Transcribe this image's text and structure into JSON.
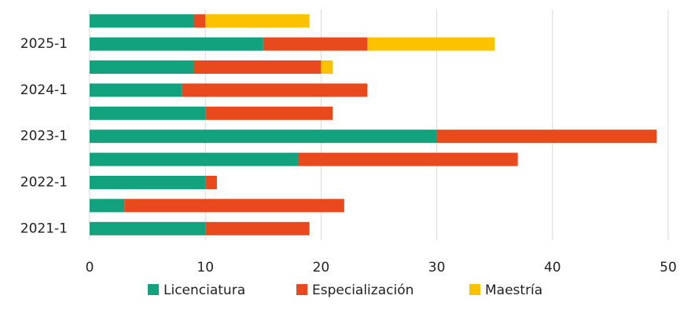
{
  "chart_data": {
    "type": "stacked-barh",
    "categories": [
      "2021-1",
      null,
      "2022-1",
      null,
      "2023-1",
      null,
      "2024-1",
      null,
      "2025-1",
      null
    ],
    "series": [
      {
        "name": "Licenciatura",
        "color": "#12a37e",
        "values": [
          10,
          3,
          10,
          18,
          30,
          10,
          8,
          9,
          15,
          9
        ]
      },
      {
        "name": "Especialización",
        "color": "#e8491d",
        "values": [
          9,
          19,
          1,
          19,
          19,
          11,
          16,
          11,
          9,
          1
        ]
      },
      {
        "name": "Maestría",
        "color": "#fcc200",
        "values": [
          0,
          0,
          0,
          0,
          0,
          0,
          0,
          1,
          11,
          9
        ]
      }
    ],
    "xlim": [
      0,
      50
    ],
    "xticks": [
      0,
      10,
      20,
      30,
      40,
      50
    ],
    "grid": true,
    "legend": "bottom"
  }
}
